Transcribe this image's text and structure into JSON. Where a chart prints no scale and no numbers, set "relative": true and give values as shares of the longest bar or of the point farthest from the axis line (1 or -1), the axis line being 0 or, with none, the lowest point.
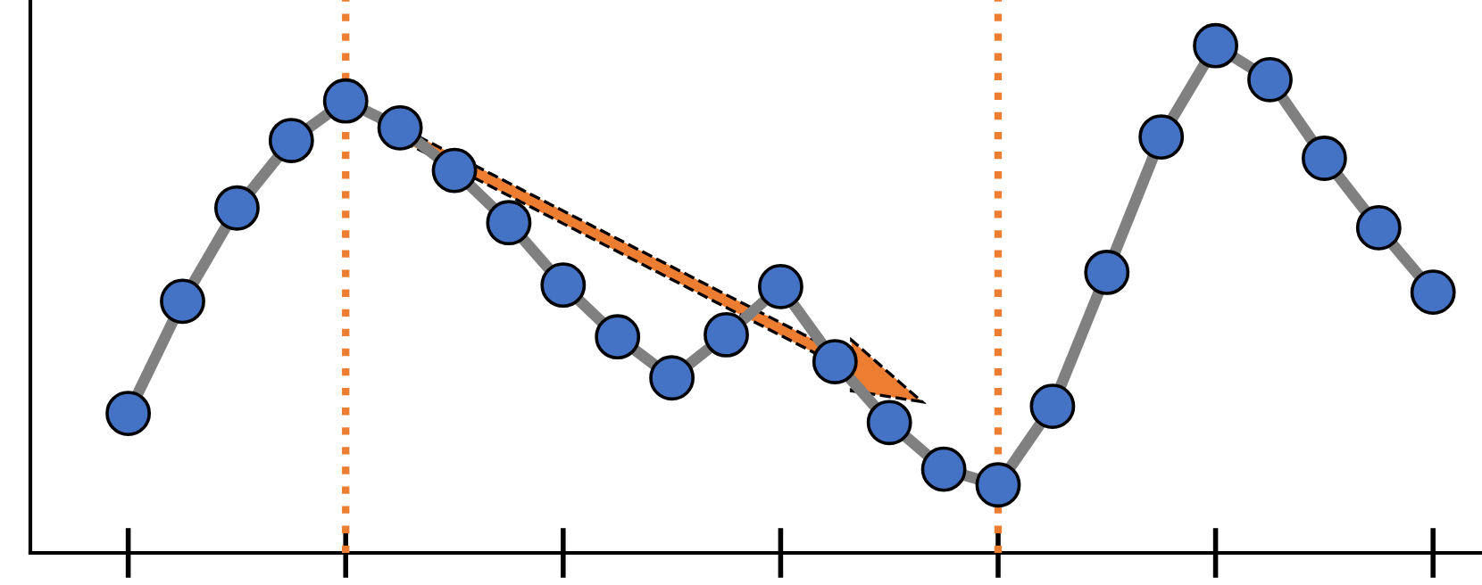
{
  "chart_data": {
    "type": "line",
    "relative": true,
    "categories": [
      null,
      null,
      null,
      null,
      null,
      null,
      null,
      null,
      null,
      null,
      null,
      null,
      null,
      null,
      null,
      null,
      null,
      null,
      null,
      null,
      null,
      null,
      null,
      null,
      null
    ],
    "series": [
      {
        "color": "#808080",
        "values": [
          0.275,
          0.496,
          0.68,
          0.813,
          0.891,
          0.838,
          0.754,
          0.651,
          0.528,
          0.426,
          0.345,
          0.43,
          0.525,
          0.377,
          0.257,
          0.165,
          0.134,
          0.289,
          0.553,
          0.82,
          1,
          0.933,
          0.778,
          0.641,
          0.514
        ]
      }
    ],
    "marker": "circle",
    "line_style": "solid",
    "grid": false,
    "legend": false
  }
}
